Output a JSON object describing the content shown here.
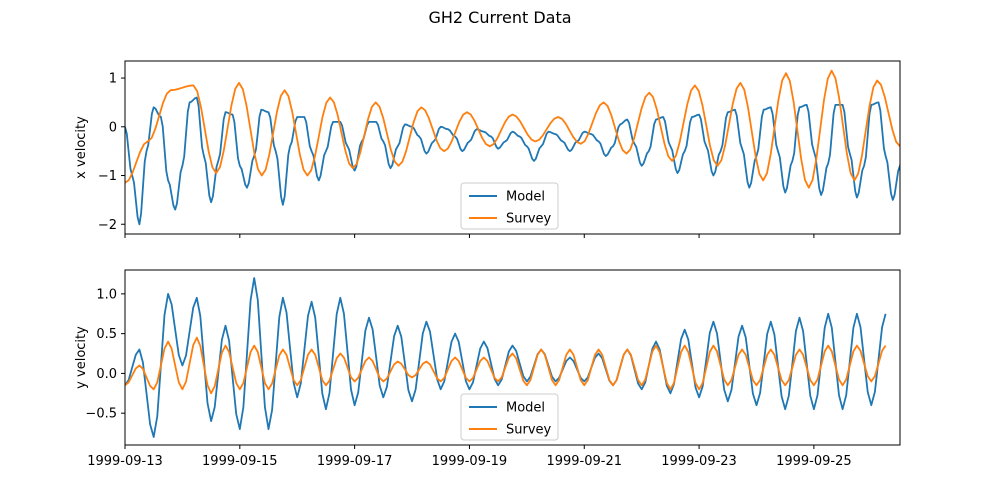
{
  "figure": {
    "title": "GH2 Current Data",
    "colors": {
      "model": "#1f77b4",
      "survey": "#ff7f0e",
      "axes": "#000000",
      "legend_border": "#cccccc"
    }
  },
  "chart_data": [
    {
      "type": "line",
      "title": "",
      "xlabel": "",
      "ylabel": "x velocity",
      "x_type": "date",
      "x_range": [
        "1999-09-13",
        "1999-09-26 12:00"
      ],
      "ylim": [
        -2.2,
        1.35
      ],
      "yticks": [
        1,
        0,
        -1,
        -2
      ],
      "ytick_labels": [
        "1",
        "0",
        "−1",
        "−2"
      ],
      "x_tick_labels_visible": false,
      "grid": false,
      "legend": {
        "placement": "bottom-center",
        "entries": [
          "Model",
          "Survey"
        ]
      },
      "samples_per_day": 8,
      "series": [
        {
          "name": "Model",
          "color": "#1f77b4",
          "start": "1999-09-13",
          "step_hours": 3,
          "values": [
            0.0,
            -1.0,
            -2.0,
            -0.5,
            0.4,
            0.2,
            -1.1,
            -1.7,
            -0.8,
            0.5,
            0.6,
            -0.6,
            -1.55,
            -0.7,
            0.3,
            0.25,
            -0.8,
            -1.25,
            -0.6,
            0.35,
            0.3,
            -0.5,
            -1.6,
            -0.4,
            0.2,
            0.2,
            -0.5,
            -1.1,
            -0.5,
            0.1,
            0.1,
            -0.4,
            -0.9,
            -0.3,
            0.1,
            0.1,
            -0.3,
            -0.85,
            -0.4,
            0.05,
            0.0,
            -0.2,
            -0.55,
            -0.3,
            0.0,
            -0.05,
            -0.2,
            -0.5,
            -0.3,
            -0.05,
            -0.1,
            -0.2,
            -0.45,
            -0.3,
            -0.1,
            -0.2,
            -0.4,
            -0.7,
            -0.4,
            -0.1,
            -0.15,
            -0.3,
            -0.5,
            -0.3,
            -0.1,
            -0.15,
            -0.3,
            -0.6,
            -0.4,
            0.05,
            0.15,
            -0.35,
            -0.8,
            -0.5,
            0.15,
            0.2,
            -0.4,
            -0.95,
            -0.5,
            0.2,
            0.25,
            -0.4,
            -1.0,
            -0.5,
            0.3,
            0.35,
            -0.45,
            -1.25,
            -0.6,
            0.35,
            0.4,
            -0.5,
            -1.35,
            -0.7,
            0.4,
            0.45,
            -0.5,
            -1.4,
            -0.75,
            0.45,
            0.45,
            -0.55,
            -1.45,
            -0.8,
            0.45,
            0.5,
            -0.6,
            -1.5,
            -0.8,
            0.5,
            0.5
          ],
          "transform": "smooth-line"
        },
        {
          "name": "Survey",
          "color": "#ff7f0e",
          "start": "1999-09-13",
          "step_hours": 3,
          "values": [
            -1.15,
            -0.3,
            0.75,
            0.85,
            -0.95,
            0.9,
            -1.0,
            0.75,
            -1.0,
            0.6,
            -0.85,
            0.5,
            -0.8,
            0.4,
            -0.5,
            0.3,
            -0.4,
            0.25,
            -0.3,
            0.2,
            -0.35,
            0.5,
            -0.55,
            0.7,
            -0.7,
            0.85,
            -0.8,
            0.9,
            -1.1,
            1.1,
            -1.25,
            1.15,
            -1.1,
            0.95,
            -0.4
          ],
          "transform": "half-day-extrema"
        }
      ]
    },
    {
      "type": "line",
      "title": "",
      "xlabel": "",
      "ylabel": "y velocity",
      "x_type": "date",
      "x_range": [
        "1999-09-13",
        "1999-09-26 12:00"
      ],
      "ylim": [
        -0.9,
        1.3
      ],
      "yticks": [
        1.0,
        0.5,
        0.0,
        -0.5
      ],
      "ytick_labels": [
        "1.0",
        "0.5",
        "0.0",
        "−0.5"
      ],
      "xticks": [
        "1999-09-13",
        "1999-09-15",
        "1999-09-17",
        "1999-09-19",
        "1999-09-21",
        "1999-09-23",
        "1999-09-25"
      ],
      "grid": false,
      "legend": {
        "placement": "bottom-center",
        "entries": [
          "Model",
          "Survey"
        ]
      },
      "series": [
        {
          "name": "Model",
          "color": "#1f77b4",
          "start": "1999-09-13",
          "step_hours": 6,
          "values": [
            -0.15,
            0.3,
            -0.8,
            1.0,
            0.1,
            0.95,
            -0.6,
            0.6,
            -0.7,
            1.2,
            -0.7,
            0.95,
            -0.3,
            0.9,
            -0.45,
            0.95,
            -0.4,
            0.7,
            -0.3,
            0.6,
            -0.35,
            0.65,
            -0.2,
            0.5,
            -0.2,
            0.4,
            -0.15,
            0.35,
            -0.1,
            0.3,
            -0.1,
            0.2,
            -0.1,
            0.25,
            -0.15,
            0.3,
            -0.2,
            0.4,
            -0.25,
            0.55,
            -0.3,
            0.65,
            -0.35,
            0.6,
            -0.4,
            0.65,
            -0.45,
            0.7,
            -0.45,
            0.75,
            -0.45,
            0.75,
            -0.4,
            0.75
          ],
          "transform": "smooth-line"
        },
        {
          "name": "Survey",
          "color": "#ff7f0e",
          "start": "1999-09-13",
          "step_hours": 6,
          "values": [
            -0.15,
            0.1,
            -0.2,
            0.4,
            -0.2,
            0.45,
            -0.25,
            0.35,
            -0.2,
            0.35,
            -0.2,
            0.3,
            -0.15,
            0.3,
            -0.15,
            0.25,
            -0.1,
            0.2,
            -0.1,
            0.15,
            -0.05,
            0.15,
            -0.1,
            0.2,
            -0.1,
            0.2,
            -0.1,
            0.25,
            -0.15,
            0.3,
            -0.15,
            0.3,
            -0.15,
            0.3,
            -0.15,
            0.3,
            -0.15,
            0.35,
            -0.2,
            0.35,
            -0.2,
            0.35,
            -0.15,
            0.3,
            -0.15,
            0.3,
            -0.15,
            0.3,
            -0.15,
            0.35,
            -0.15,
            0.35,
            -0.1,
            0.35
          ],
          "transform": "smooth-line"
        }
      ]
    }
  ]
}
